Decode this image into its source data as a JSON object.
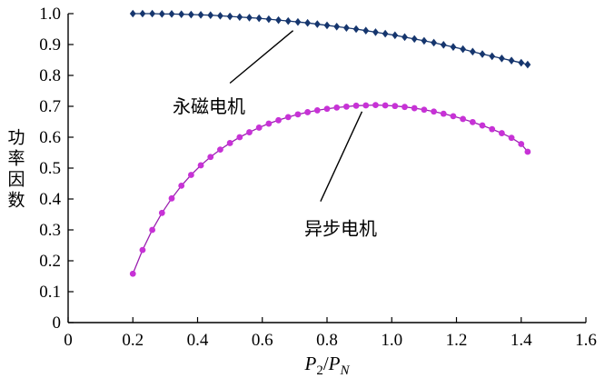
{
  "figure": {
    "background": "#ffffff",
    "axis_color": "#000000",
    "text_color": "#000000"
  },
  "chart_data": {
    "type": "line",
    "title": "",
    "xlabel_plain": "P2/PN",
    "xlabel_parts": [
      {
        "text": "P",
        "italic": true,
        "sub": false
      },
      {
        "text": "2",
        "italic": false,
        "sub": true
      },
      {
        "text": "/",
        "italic": false,
        "sub": false
      },
      {
        "text": "P",
        "italic": true,
        "sub": false
      },
      {
        "text": "N",
        "italic": true,
        "sub": true
      }
    ],
    "ylabel": "功率因数",
    "xlim": [
      0,
      1.6
    ],
    "ylim": [
      0,
      1.0
    ],
    "grid": false,
    "legend": "none",
    "x_ticks": {
      "values": [
        0,
        0.2,
        0.4,
        0.6,
        0.8,
        1.0,
        1.2,
        1.4,
        1.6
      ],
      "labels": [
        "0",
        "0.2",
        "0.4",
        "0.6",
        "0.8",
        "1.0",
        "1.2",
        "1.4",
        "1.6"
      ]
    },
    "y_ticks": {
      "values": [
        0,
        0.1,
        0.2,
        0.3,
        0.4,
        0.5,
        0.6,
        0.7,
        0.8,
        0.9,
        1.0
      ],
      "labels": [
        "0",
        "0.1",
        "0.2",
        "0.3",
        "0.4",
        "0.5",
        "0.6",
        "0.7",
        "0.8",
        "0.9",
        "1.0"
      ]
    },
    "x": [
      0.2,
      0.23,
      0.26,
      0.29,
      0.32,
      0.35,
      0.38,
      0.41,
      0.44,
      0.47,
      0.5,
      0.53,
      0.56,
      0.59,
      0.62,
      0.65,
      0.68,
      0.71,
      0.74,
      0.77,
      0.8,
      0.83,
      0.86,
      0.89,
      0.92,
      0.95,
      0.98,
      1.01,
      1.04,
      1.07,
      1.1,
      1.13,
      1.16,
      1.19,
      1.22,
      1.25,
      1.28,
      1.31,
      1.34,
      1.37,
      1.4,
      1.42
    ],
    "series": [
      {
        "name": "永磁电机",
        "marker": "diamond",
        "marker_color": "#16366e",
        "line_color": "#16366e",
        "values": [
          1.0,
          1.0,
          1.0,
          0.999,
          0.999,
          0.998,
          0.997,
          0.996,
          0.995,
          0.993,
          0.991,
          0.989,
          0.987,
          0.985,
          0.982,
          0.979,
          0.976,
          0.973,
          0.97,
          0.966,
          0.962,
          0.958,
          0.954,
          0.95,
          0.945,
          0.94,
          0.935,
          0.93,
          0.924,
          0.918,
          0.912,
          0.906,
          0.899,
          0.892,
          0.885,
          0.877,
          0.869,
          0.862,
          0.855,
          0.848,
          0.841,
          0.835
        ]
      },
      {
        "name": "异步电机",
        "marker": "circle",
        "marker_color": "#c732d6",
        "line_color": "#9b1fb0",
        "values": [
          0.158,
          0.235,
          0.3,
          0.355,
          0.402,
          0.443,
          0.478,
          0.509,
          0.536,
          0.56,
          0.581,
          0.6,
          0.616,
          0.631,
          0.644,
          0.655,
          0.665,
          0.674,
          0.681,
          0.687,
          0.692,
          0.696,
          0.699,
          0.702,
          0.703,
          0.704,
          0.703,
          0.701,
          0.698,
          0.694,
          0.689,
          0.683,
          0.676,
          0.668,
          0.659,
          0.649,
          0.638,
          0.626,
          0.613,
          0.598,
          0.578,
          0.553
        ]
      }
    ],
    "annotations": [
      {
        "text": "永磁电机",
        "text_x": 0.435,
        "text_y": 0.7,
        "line": {
          "x1": 0.5,
          "y1": 0.775,
          "x2": 0.695,
          "y2": 0.945
        },
        "color": "#000000"
      },
      {
        "text": "异步电机",
        "text_x": 0.842,
        "text_y": 0.305,
        "line": {
          "x1": 0.78,
          "y1": 0.392,
          "x2": 0.908,
          "y2": 0.683
        },
        "color": "#000000"
      }
    ]
  }
}
